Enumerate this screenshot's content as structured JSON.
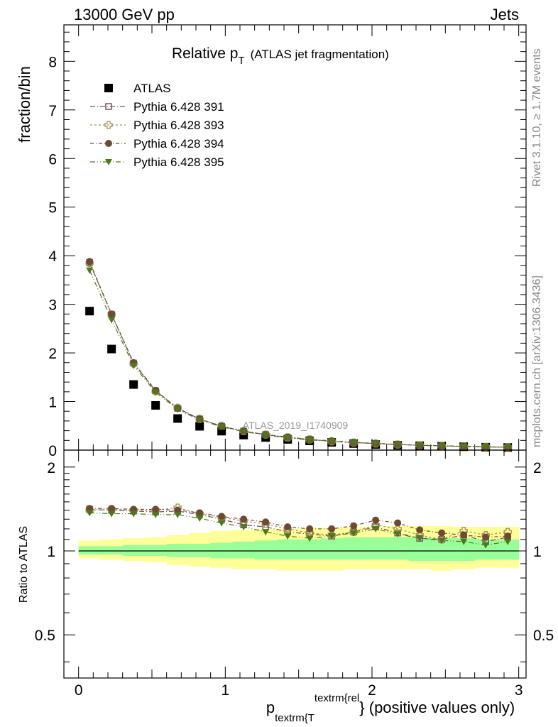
{
  "header": {
    "left": "13000 GeV pp",
    "right": "Jets"
  },
  "title": {
    "main": "Relative p",
    "sub": "T",
    "suffix": "(ATLAS jet fragmentation)"
  },
  "side_text": {
    "top": "Rivet 3.1.10, ≥ 1.7M events",
    "bottom": "mcplots.cern.ch [arXiv:1306.3436]"
  },
  "watermark": "ATLAS_2019_I1740909",
  "ratio_label": "Ratio to ATLAS",
  "chart_data": [
    {
      "type": "scatter",
      "panel": "main",
      "ylabel": "fraction/bin",
      "xlim": [
        -0.1,
        3.05
      ],
      "ylim": [
        0,
        8.75
      ],
      "yticks": [
        0,
        1,
        2,
        3,
        4,
        5,
        6,
        7,
        8
      ],
      "x": [
        0.075,
        0.225,
        0.375,
        0.525,
        0.675,
        0.825,
        0.975,
        1.125,
        1.275,
        1.425,
        1.575,
        1.725,
        1.875,
        2.025,
        2.175,
        2.325,
        2.475,
        2.625,
        2.775,
        2.925
      ],
      "legend": {
        "placement": "top-left"
      },
      "series": [
        {
          "name": "ATLAS",
          "color": "#000000",
          "marker": "filled-square",
          "values": [
            2.86,
            2.08,
            1.35,
            0.92,
            0.65,
            0.49,
            0.39,
            0.31,
            0.26,
            0.22,
            0.19,
            0.16,
            0.135,
            0.115,
            0.1,
            0.09,
            0.08,
            0.07,
            0.06,
            0.055
          ]
        },
        {
          "name": "Pythia 6.428 391",
          "color": "#7a5060",
          "marker": "open-square",
          "dash": "7 3 1 3",
          "values": [
            3.86,
            2.79,
            1.79,
            1.22,
            0.86,
            0.64,
            0.49,
            0.39,
            0.32,
            0.26,
            0.22,
            0.18,
            0.155,
            0.135,
            0.115,
            0.1,
            0.085,
            0.075,
            0.065,
            0.06
          ]
        },
        {
          "name": "Pythia 6.428 393",
          "color": "#a09050",
          "marker": "open-cross",
          "dash": "3 3",
          "values": [
            3.85,
            2.79,
            1.78,
            1.21,
            0.87,
            0.64,
            0.5,
            0.39,
            0.32,
            0.26,
            0.22,
            0.18,
            0.155,
            0.135,
            0.115,
            0.1,
            0.09,
            0.075,
            0.065,
            0.06
          ]
        },
        {
          "name": "Pythia 6.428 394",
          "color": "#6e4a32",
          "marker": "filled-circle",
          "dash": "5 3 1 3",
          "values": [
            3.88,
            2.8,
            1.8,
            1.23,
            0.86,
            0.64,
            0.49,
            0.39,
            0.32,
            0.27,
            0.22,
            0.19,
            0.16,
            0.14,
            0.12,
            0.1,
            0.09,
            0.08,
            0.07,
            0.06
          ]
        },
        {
          "name": "Pythia 6.428 395",
          "color": "#4a7a1a",
          "marker": "filled-triangle-down",
          "dash": "7 3 1 3 1 3",
          "values": [
            3.7,
            2.68,
            1.74,
            1.19,
            0.84,
            0.62,
            0.48,
            0.38,
            0.31,
            0.25,
            0.21,
            0.18,
            0.155,
            0.135,
            0.115,
            0.1,
            0.085,
            0.075,
            0.065,
            0.06
          ]
        }
      ]
    },
    {
      "type": "scatter",
      "panel": "ratio",
      "ylabel": "Ratio to ATLAS",
      "xlabel": "p",
      "xlabel_sub": "textrm{T",
      "xlabel_sup": "textrm{rel",
      "xlabel_suffix": "} (positive values only)",
      "log_y": true,
      "xlim": [
        -0.1,
        3.05
      ],
      "ylim": [
        0.35,
        2.3
      ],
      "xticks": [
        0,
        1,
        2,
        3
      ],
      "yticks": [
        0.5,
        1,
        2
      ],
      "bands": {
        "outer_color": "#ffff99",
        "inner_color": "#99ff99",
        "outer_up": [
          1.09,
          1.1,
          1.11,
          1.12,
          1.14,
          1.16,
          1.18,
          1.19,
          1.2,
          1.2,
          1.21,
          1.21,
          1.22,
          1.22,
          1.23,
          1.23,
          1.23,
          1.22,
          1.22,
          1.22
        ],
        "outer_down": [
          0.94,
          0.93,
          0.92,
          0.91,
          0.89,
          0.88,
          0.87,
          0.86,
          0.86,
          0.85,
          0.85,
          0.85,
          0.86,
          0.86,
          0.86,
          0.86,
          0.85,
          0.86,
          0.87,
          0.87
        ],
        "inner_up": [
          1.04,
          1.04,
          1.05,
          1.05,
          1.06,
          1.06,
          1.07,
          1.08,
          1.09,
          1.1,
          1.1,
          1.11,
          1.12,
          1.12,
          1.12,
          1.12,
          1.11,
          1.11,
          1.1,
          1.1
        ],
        "inner_down": [
          0.97,
          0.97,
          0.96,
          0.96,
          0.95,
          0.95,
          0.94,
          0.94,
          0.93,
          0.93,
          0.93,
          0.93,
          0.93,
          0.93,
          0.93,
          0.92,
          0.92,
          0.92,
          0.93,
          0.93
        ]
      },
      "x": [
        0.075,
        0.225,
        0.375,
        0.525,
        0.675,
        0.825,
        0.975,
        1.125,
        1.275,
        1.425,
        1.575,
        1.725,
        1.875,
        2.025,
        2.175,
        2.325,
        2.475,
        2.625,
        2.775,
        2.925
      ],
      "series": [
        {
          "name": "Pythia 6.428 391",
          "color": "#7a5060",
          "marker": "open-square",
          "dash": "7 3 1 3",
          "values": [
            1.41,
            1.4,
            1.39,
            1.38,
            1.39,
            1.35,
            1.3,
            1.24,
            1.22,
            1.17,
            1.15,
            1.13,
            1.17,
            1.22,
            1.16,
            1.11,
            1.1,
            1.14,
            1.08,
            1.12
          ]
        },
        {
          "name": "Pythia 6.428 393",
          "color": "#a09050",
          "marker": "open-cross",
          "dash": "3 3",
          "values": [
            1.4,
            1.41,
            1.4,
            1.4,
            1.43,
            1.36,
            1.32,
            1.28,
            1.25,
            1.2,
            1.16,
            1.14,
            1.17,
            1.24,
            1.2,
            1.14,
            1.1,
            1.18,
            1.14,
            1.17
          ]
        },
        {
          "name": "Pythia 6.428 394",
          "color": "#6e4a32",
          "marker": "filled-circle",
          "dash": "5 3 1 3",
          "values": [
            1.42,
            1.42,
            1.41,
            1.41,
            1.4,
            1.37,
            1.33,
            1.3,
            1.27,
            1.22,
            1.2,
            1.2,
            1.23,
            1.29,
            1.26,
            1.19,
            1.16,
            1.14,
            1.12,
            1.13
          ]
        },
        {
          "name": "Pythia 6.428 395",
          "color": "#4a7a1a",
          "marker": "filled-triangle-down",
          "dash": "7 3 1 3 1 3",
          "values": [
            1.37,
            1.36,
            1.36,
            1.35,
            1.35,
            1.31,
            1.26,
            1.22,
            1.17,
            1.13,
            1.11,
            1.13,
            1.16,
            1.2,
            1.15,
            1.11,
            1.09,
            1.08,
            1.05,
            1.08
          ]
        }
      ]
    }
  ]
}
